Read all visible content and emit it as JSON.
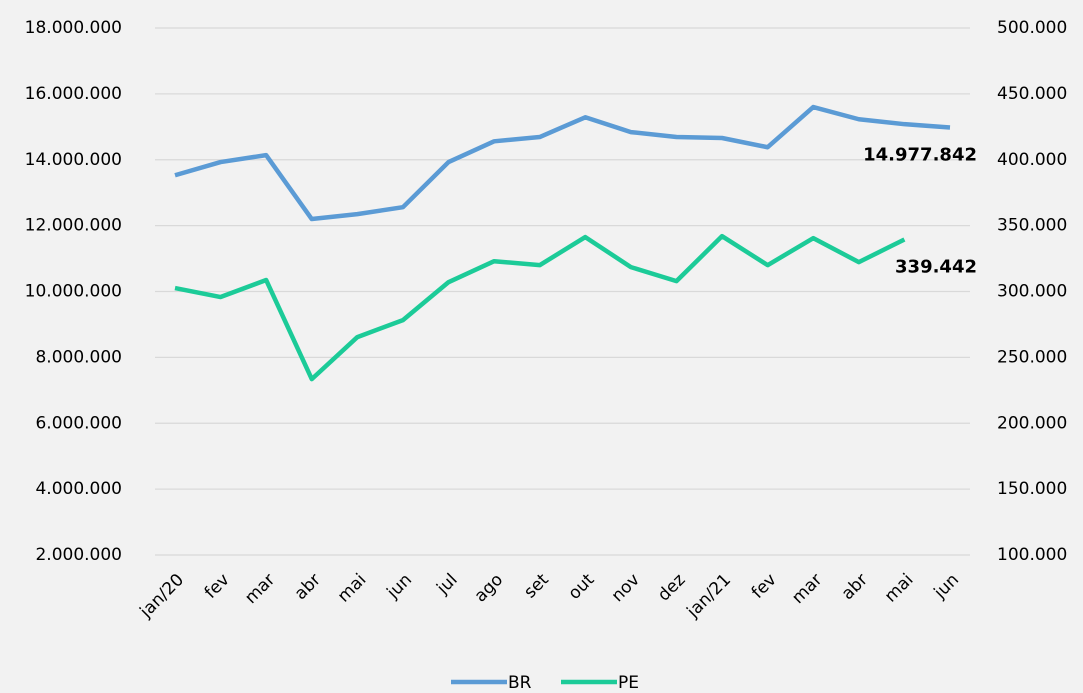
{
  "chart_data": {
    "type": "line",
    "categories": [
      "jan/20",
      "fev",
      "mar",
      "abr",
      "mai",
      "jun",
      "jul",
      "ago",
      "set",
      "out",
      "nov",
      "dez",
      "jan/21",
      "fev",
      "mar",
      "abr",
      "mai",
      "jun"
    ],
    "series": [
      {
        "name": "BR",
        "color": "#5b9bd5",
        "axis": "y",
        "values": [
          13530000,
          13930000,
          14140000,
          12200000,
          12350000,
          12560000,
          13930000,
          14560000,
          14690000,
          15290000,
          14840000,
          14690000,
          14660000,
          14380000,
          15600000,
          15230000,
          15080000,
          14977842
        ],
        "value_labels": [
          null,
          null,
          null,
          null,
          null,
          null,
          null,
          null,
          null,
          null,
          null,
          null,
          null,
          null,
          null,
          null,
          null,
          "14.977.842"
        ]
      },
      {
        "name": "PE",
        "color": "#1ccb98",
        "axis": "y2",
        "values": [
          302600,
          295800,
          308700,
          233500,
          265400,
          278300,
          307100,
          323000,
          320000,
          341300,
          318500,
          307900,
          342000,
          320000,
          340500,
          322300,
          339442,
          null
        ],
        "value_labels": [
          null,
          null,
          null,
          null,
          null,
          null,
          null,
          null,
          null,
          null,
          null,
          null,
          null,
          null,
          null,
          null,
          "339.442",
          null
        ]
      }
    ],
    "ylim": [
      2000000,
      18000000
    ],
    "yticks": [
      {
        "value": 2000000,
        "label": "2.000.000"
      },
      {
        "value": 4000000,
        "label": "4.000.000"
      },
      {
        "value": 6000000,
        "label": "6.000.000"
      },
      {
        "value": 8000000,
        "label": "8.000.000"
      },
      {
        "value": 10000000,
        "label": "10.000.000"
      },
      {
        "value": 12000000,
        "label": "12.000.000"
      },
      {
        "value": 14000000,
        "label": "14.000.000"
      },
      {
        "value": 16000000,
        "label": "16.000.000"
      },
      {
        "value": 18000000,
        "label": "18.000.000"
      }
    ],
    "y2lim": [
      100000,
      500000
    ],
    "y2ticks": [
      {
        "value": 100000,
        "label": "100.000"
      },
      {
        "value": 150000,
        "label": "150.000"
      },
      {
        "value": 200000,
        "label": "200.000"
      },
      {
        "value": 250000,
        "label": "250.000"
      },
      {
        "value": 300000,
        "label": "300.000"
      },
      {
        "value": 350000,
        "label": "350.000"
      },
      {
        "value": 400000,
        "label": "400.000"
      },
      {
        "value": 450000,
        "label": "450.000"
      },
      {
        "value": 500000,
        "label": "500.000"
      }
    ],
    "grid": true,
    "legend": "bottom"
  }
}
